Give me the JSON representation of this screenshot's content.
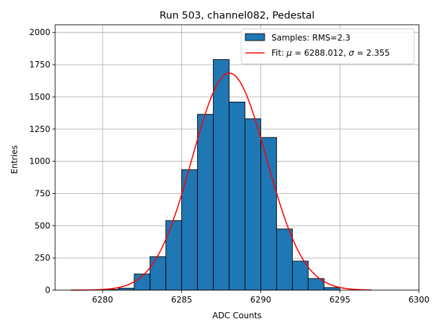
{
  "chart_data": {
    "type": "bar",
    "title": "Run 503, channel082, Pedestal",
    "xlabel": "ADC Counts",
    "ylabel": "Entries",
    "xlim": [
      6277,
      6300
    ],
    "ylim": [
      0,
      2060
    ],
    "x_ticks": [
      6280,
      6285,
      6290,
      6295,
      6300
    ],
    "y_ticks": [
      0,
      250,
      500,
      750,
      1000,
      1250,
      1500,
      1750,
      2000
    ],
    "grid": true,
    "legend_position": "top-right",
    "histogram": {
      "name": "Samples: RMS=2.3",
      "color": "#1f77b4",
      "bin_width": 1,
      "bin_left_edges": [
        6280,
        6281,
        6282,
        6283,
        6284,
        6285,
        6286,
        6287,
        6288,
        6289,
        6290,
        6291,
        6292,
        6293,
        6294
      ],
      "counts": [
        5,
        15,
        125,
        260,
        540,
        935,
        1365,
        1790,
        1460,
        1330,
        1185,
        475,
        225,
        90,
        20
      ]
    },
    "fit": {
      "name_prefix": "Fit: ",
      "name_mu": "μ",
      "name_mid": " = 6288.012, ",
      "name_sigma": "σ",
      "name_suffix": " = 2.355",
      "color": "#ff0000",
      "mu": 6288.012,
      "sigma": 2.355,
      "amplitude": 1685,
      "x_range": [
        6278,
        6297
      ]
    }
  }
}
